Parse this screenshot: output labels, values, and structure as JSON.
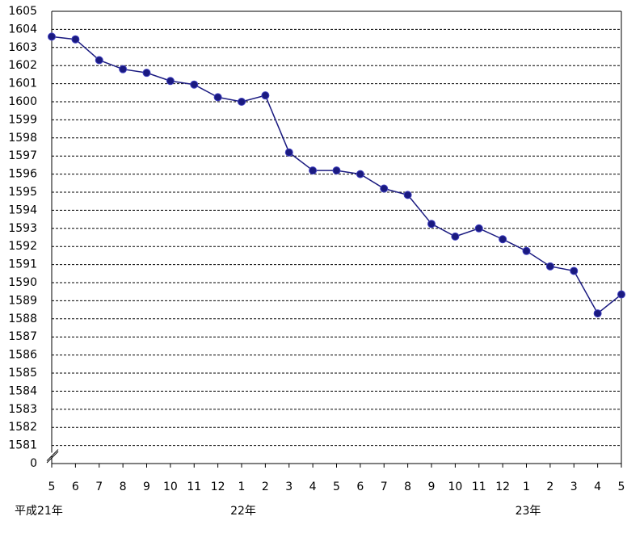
{
  "chart_data": {
    "type": "line",
    "categories": [
      "5",
      "6",
      "7",
      "8",
      "9",
      "10",
      "11",
      "12",
      "1",
      "2",
      "3",
      "4",
      "5",
      "6",
      "7",
      "8",
      "9",
      "10",
      "11",
      "12",
      "1",
      "2",
      "3",
      "4",
      "5"
    ],
    "year_labels": [
      "平成21年",
      null,
      null,
      null,
      null,
      null,
      null,
      null,
      "22年",
      null,
      null,
      null,
      null,
      null,
      null,
      null,
      null,
      null,
      null,
      null,
      "23年",
      null,
      null,
      null,
      null
    ],
    "values": [
      1603.6,
      1603.45,
      1602.3,
      1601.8,
      1601.6,
      1601.15,
      1600.95,
      1600.25,
      1600.0,
      1600.35,
      1597.2,
      1596.2,
      1596.2,
      1596.0,
      1595.2,
      1594.85,
      1593.25,
      1592.55,
      1593.0,
      1592.4,
      1591.75,
      1590.9,
      1590.65,
      1588.3,
      1589.35
    ],
    "color": "#1a1a80",
    "ylim": [
      1580,
      1605
    ],
    "yticks": [
      0,
      1581,
      1582,
      1583,
      1584,
      1585,
      1586,
      1587,
      1588,
      1589,
      1590,
      1591,
      1592,
      1593,
      1594,
      1595,
      1596,
      1597,
      1598,
      1599,
      1600,
      1601,
      1602,
      1603,
      1604,
      1605
    ],
    "axis_break": true,
    "grid": true
  }
}
